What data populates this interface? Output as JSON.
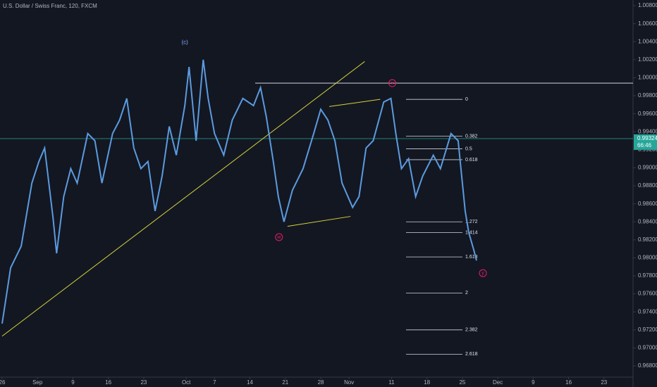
{
  "chart_data": {
    "type": "line",
    "title": "U.S. Dollar / Swiss Franc, 120, FXCM",
    "color": "#5b9bdf",
    "x": [
      0,
      1.2,
      2.7,
      4.2,
      5.2,
      6.0,
      7.2,
      7.7,
      8.7,
      9.7,
      10.6,
      12.1,
      13.1,
      14.1,
      15.6,
      16.6,
      17.6,
      18.6,
      19.6,
      20.6,
      21.6,
      22.6,
      23.6,
      24.6,
      25.8,
      26.4,
      27.4,
      28.4,
      29.1,
      30.0,
      31.3,
      32.5,
      34.0,
      35.5,
      36.5,
      37.3,
      38.3,
      39.0,
      39.8,
      41.0,
      42.5,
      44.0,
      45.0,
      46.0,
      47.0,
      48.0,
      49.5,
      50.4,
      51.4,
      52.4,
      53.9,
      54.9,
      55.6,
      56.4,
      57.4,
      58.4,
      59.4,
      60.9,
      61.9,
      63.4,
      64.4,
      64.9,
      65.4,
      65.9,
      66.6,
      67.0
    ],
    "values": [
      0.9727,
      0.9789,
      0.9813,
      0.9883,
      0.9907,
      0.9922,
      0.9844,
      0.9805,
      0.9868,
      0.9899,
      0.9883,
      0.9938,
      0.993,
      0.9883,
      0.9938,
      0.9953,
      0.9977,
      0.9922,
      0.9899,
      0.9907,
      0.9852,
      0.9891,
      0.9946,
      0.9914,
      0.9969,
      1.0012,
      0.993,
      1.002,
      0.9977,
      0.9938,
      0.9914,
      0.9953,
      0.9977,
      0.9969,
      0.9989,
      0.9957,
      0.9907,
      0.9868,
      0.984,
      0.9875,
      0.9899,
      0.9938,
      0.9965,
      0.9953,
      0.993,
      0.9883,
      0.9856,
      0.9868,
      0.9922,
      0.993,
      0.9973,
      0.9977,
      0.9938,
      0.9899,
      0.991,
      0.9868,
      0.9891,
      0.9914,
      0.9899,
      0.9938,
      0.993,
      0.9891,
      0.9852,
      0.9828,
      0.9809,
      0.9797
    ],
    "xlim": [
      0,
      89
    ],
    "xticks": [
      {
        "value": 0,
        "label": "26"
      },
      {
        "value": 5,
        "label": "Sep"
      },
      {
        "value": 10,
        "label": "9"
      },
      {
        "value": 15,
        "label": "16"
      },
      {
        "value": 20,
        "label": "23"
      },
      {
        "value": 26,
        "label": "Oct"
      },
      {
        "value": 30,
        "label": "7"
      },
      {
        "value": 35,
        "label": "14"
      },
      {
        "value": 40,
        "label": "21"
      },
      {
        "value": 45,
        "label": "28"
      },
      {
        "value": 49,
        "label": "Nov"
      },
      {
        "value": 55,
        "label": "11"
      },
      {
        "value": 60,
        "label": "18"
      },
      {
        "value": 65,
        "label": "25"
      },
      {
        "value": 70,
        "label": "Dec"
      },
      {
        "value": 75,
        "label": "9"
      },
      {
        "value": 80,
        "label": "16"
      },
      {
        "value": 85,
        "label": "23"
      }
    ],
    "ylim": [
      0.96683,
      1.00863
    ],
    "yticks": [
      {
        "value": 0.968,
        "label": "0.96800"
      },
      {
        "value": 0.97,
        "label": "0.97000"
      },
      {
        "value": 0.972,
        "label": "0.97200"
      },
      {
        "value": 0.974,
        "label": "0.97400"
      },
      {
        "value": 0.976,
        "label": "0.97600"
      },
      {
        "value": 0.978,
        "label": "0.97800"
      },
      {
        "value": 0.98,
        "label": "0.98000"
      },
      {
        "value": 0.982,
        "label": "0.98200"
      },
      {
        "value": 0.984,
        "label": "0.98400"
      },
      {
        "value": 0.986,
        "label": "0.98600"
      },
      {
        "value": 0.988,
        "label": "0.98800"
      },
      {
        "value": 0.99,
        "label": "0.99000"
      },
      {
        "value": 0.992,
        "label": "0.99200"
      },
      {
        "value": 0.994,
        "label": "0.99400"
      },
      {
        "value": 0.996,
        "label": "0.99600"
      },
      {
        "value": 0.998,
        "label": "0.99800"
      },
      {
        "value": 1.0,
        "label": "1.00000"
      },
      {
        "value": 1.002,
        "label": "1.00200"
      },
      {
        "value": 1.004,
        "label": "1.00400"
      },
      {
        "value": 1.006,
        "label": "1.00600"
      },
      {
        "value": 1.008,
        "label": "1.00800"
      }
    ],
    "current_price": {
      "value": 0.99324,
      "label": "0.99324"
    },
    "countdown": "66:46",
    "level_line": 0.9994,
    "fib": {
      "labels": [
        "0",
        "0.382",
        "0.5",
        "0.618",
        "1.272",
        "1.414",
        "1.618",
        "2",
        "2.382",
        "2.618"
      ],
      "prices": [
        0.9976,
        0.9935,
        0.9921,
        0.9909,
        0.984,
        0.9828,
        0.9801,
        0.9761,
        0.972,
        0.9693
      ]
    },
    "trendlines": [
      {
        "x": [
          0,
          51.2
        ],
        "y": [
          0.9713,
          1.0018
        ]
      },
      {
        "x": [
          40.3,
          49.2
        ],
        "y": [
          0.9835,
          0.9846
        ]
      },
      {
        "x": [
          46.2,
          53.4
        ],
        "y": [
          0.9968,
          0.9976
        ]
      }
    ],
    "wave_labels": [
      {
        "text": "(c)",
        "x": 25.8,
        "y": 1.0039
      },
      {
        "text": "x",
        "x": 55.1,
        "y": 0.9994
      },
      {
        "text": "w",
        "x": 39.1,
        "y": 0.9823
      },
      {
        "text": "y",
        "x": 67.9,
        "y": 0.9783
      }
    ]
  }
}
